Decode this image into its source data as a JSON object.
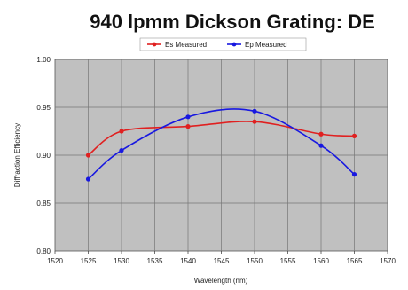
{
  "chart_data": {
    "type": "line",
    "title": "940 lpmm Dickson Grating: DE",
    "xlabel": "Wavelength (nm)",
    "ylabel": "Diffraction Efficiency",
    "xlim": [
      1520,
      1570
    ],
    "ylim": [
      0.8,
      1.0
    ],
    "x_ticks": [
      "1520",
      "1525",
      "1530",
      "1535",
      "1540",
      "1545",
      "1550",
      "1555",
      "1560",
      "1565",
      "1570"
    ],
    "x_tick_values": [
      1520,
      1525,
      1530,
      1535,
      1540,
      1545,
      1550,
      1555,
      1560,
      1565,
      1570
    ],
    "y_ticks": [
      "0.80",
      "0.85",
      "0.90",
      "0.95",
      "1.00"
    ],
    "y_tick_values": [
      0.8,
      0.85,
      0.9,
      0.95,
      1.0
    ],
    "grid": true,
    "legend_position": "top-center",
    "plot_background": "#c0c0c0",
    "series": [
      {
        "name": "Es Measured",
        "color": "#e02020",
        "x": [
          1525,
          1530,
          1540,
          1550,
          1560,
          1565
        ],
        "y": [
          0.9,
          0.925,
          0.93,
          0.935,
          0.922,
          0.92
        ]
      },
      {
        "name": "Ep Measured",
        "color": "#1818e0",
        "x": [
          1525,
          1530,
          1540,
          1550,
          1560,
          1565
        ],
        "y": [
          0.875,
          0.905,
          0.94,
          0.946,
          0.91,
          0.88
        ]
      }
    ]
  }
}
